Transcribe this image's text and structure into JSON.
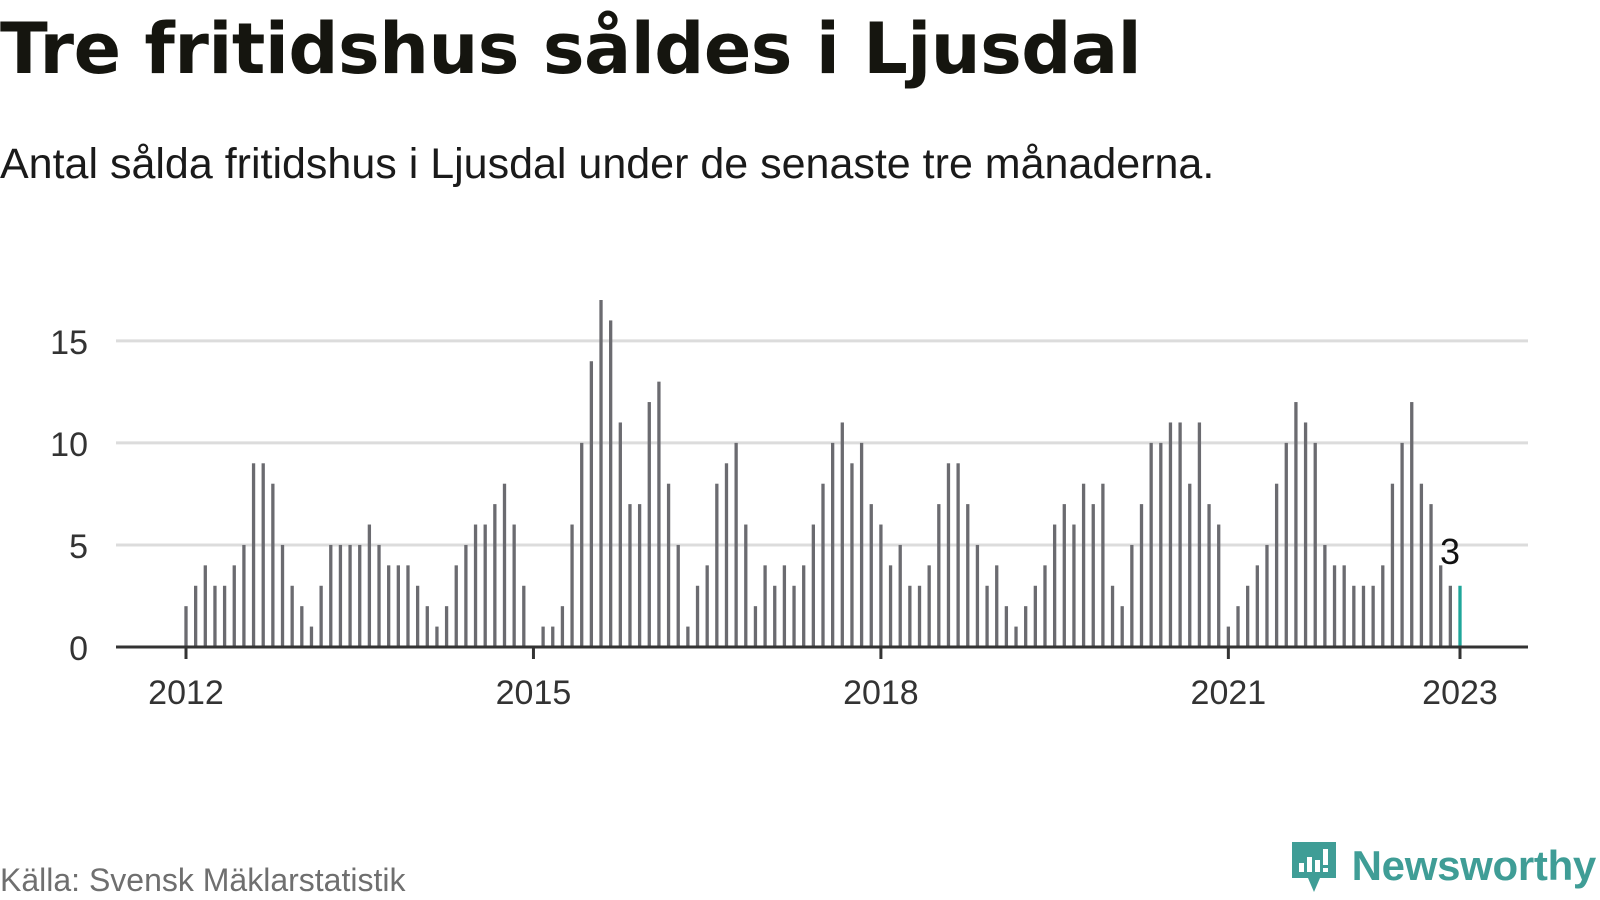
{
  "title": "Tre fritidshus såldes i Ljusdal",
  "subtitle": "Antal sålda fritidshus i Ljusdal under de senaste tre månaderna.",
  "source": "Källa: Svensk Mäklarstatistik",
  "brand": {
    "name": "Newsworthy",
    "icon": "newsworthy-logo-icon"
  },
  "colors": {
    "bar": "#6b6b70",
    "highlight": "#1fa69a",
    "grid": "#dcdcdc",
    "axis": "#333333",
    "brand": "#3f9d96"
  },
  "chart_data": {
    "type": "bar",
    "title": "Tre fritidshus såldes i Ljusdal",
    "subtitle": "Antal sålda fritidshus i Ljusdal under de senaste tre månaderna.",
    "start_month": "2012-01",
    "end_month": "2023-01",
    "frequency": "monthly",
    "values": [
      2,
      3,
      4,
      3,
      3,
      4,
      5,
      9,
      9,
      8,
      5,
      3,
      2,
      1,
      3,
      5,
      5,
      5,
      5,
      6,
      5,
      4,
      4,
      4,
      3,
      2,
      1,
      2,
      4,
      5,
      6,
      6,
      7,
      8,
      6,
      3,
      0,
      1,
      1,
      2,
      6,
      10,
      14,
      17,
      16,
      11,
      7,
      7,
      12,
      13,
      8,
      5,
      1,
      3,
      4,
      8,
      9,
      10,
      6,
      2,
      4,
      3,
      4,
      3,
      4,
      6,
      8,
      10,
      11,
      9,
      10,
      7,
      6,
      4,
      5,
      3,
      3,
      4,
      7,
      9,
      9,
      7,
      5,
      3,
      4,
      2,
      1,
      2,
      3,
      4,
      6,
      7,
      6,
      8,
      7,
      8,
      3,
      2,
      5,
      7,
      10,
      10,
      11,
      11,
      8,
      11,
      7,
      6,
      1,
      2,
      3,
      4,
      5,
      8,
      10,
      12,
      11,
      10,
      5,
      4,
      4,
      3,
      3,
      3,
      4,
      8,
      10,
      12,
      8,
      7,
      4,
      3,
      3
    ],
    "highlight_last": true,
    "annotation": "3",
    "ylim": [
      0,
      17
    ],
    "yticks": [
      0,
      5,
      10,
      15
    ],
    "xtick_labels": [
      "2012",
      "2015",
      "2018",
      "2021",
      "2023"
    ],
    "grid": true,
    "xlabel": "",
    "ylabel": ""
  }
}
